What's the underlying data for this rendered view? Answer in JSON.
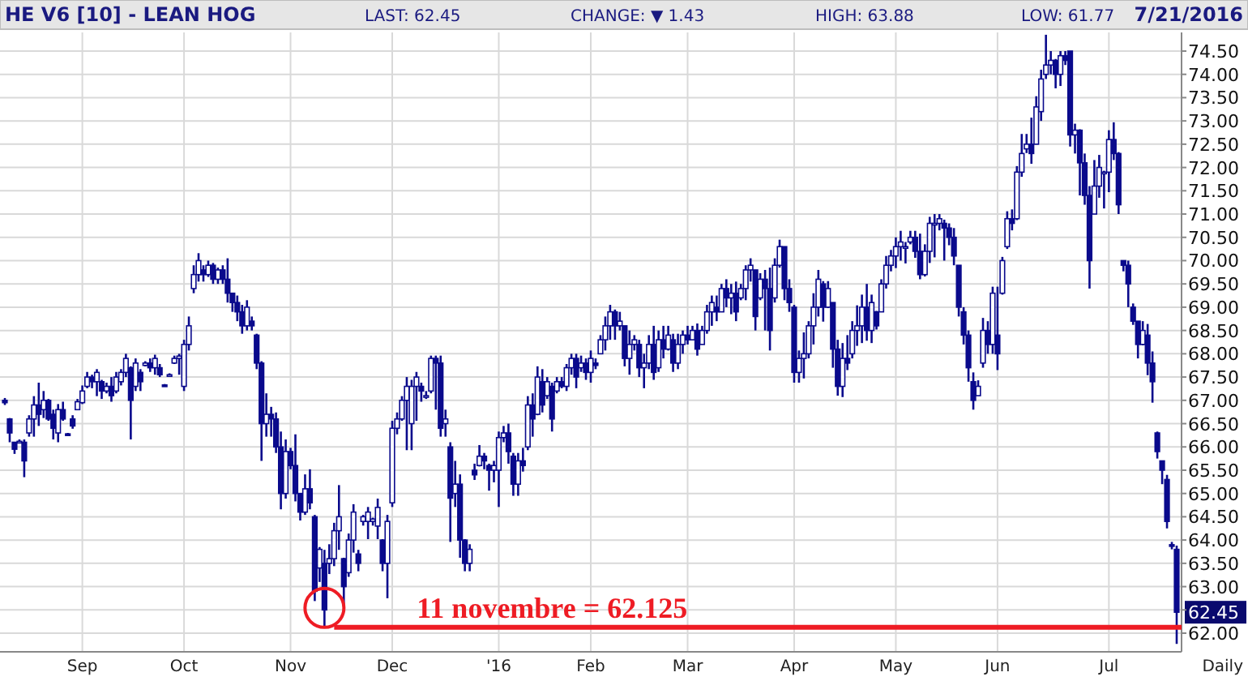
{
  "chart_data": {
    "type": "candlestick",
    "title": "HE V6 [10] - LEAN HOG",
    "annotations": [
      "LAST: 62.45",
      "CHANGE: ▼ 1.43",
      "HIGH: 63.88",
      "LOW: 61.77",
      "7/21/2016",
      "Daily",
      "62.45"
    ],
    "color": "#0a0a8c",
    "grid": true,
    "categories": [
      null,
      null,
      null,
      null,
      null,
      null,
      null,
      null,
      null,
      null,
      null,
      null,
      null,
      null,
      null,
      null,
      "Sep",
      null,
      null,
      null,
      null,
      null,
      null,
      null,
      null,
      null,
      null,
      null,
      null,
      null,
      null,
      null,
      null,
      null,
      null,
      null,
      null,
      "Oct",
      null,
      null,
      null,
      null,
      null,
      null,
      null,
      null,
      null,
      null,
      null,
      null,
      null,
      null,
      null,
      null,
      null,
      null,
      null,
      null,
      null,
      "Nov",
      null,
      null,
      null,
      null,
      null,
      null,
      null,
      null,
      null,
      null,
      null,
      null,
      null,
      null,
      null,
      null,
      null,
      null,
      null,
      null,
      "Dec",
      null,
      null,
      null,
      null,
      null,
      null,
      null,
      null,
      null,
      null,
      null,
      null,
      null,
      null,
      null,
      null,
      null,
      null,
      null,
      null,
      null,
      "'16",
      null,
      null,
      null,
      null,
      null,
      null,
      null,
      null,
      null,
      null,
      null,
      null,
      null,
      null,
      null,
      null,
      null,
      null,
      "Feb",
      null,
      null,
      null,
      null,
      null,
      null,
      null,
      null,
      null,
      null,
      null,
      null,
      null,
      null,
      null,
      null,
      null,
      null,
      null,
      "Mar",
      null,
      null,
      null,
      null,
      null,
      null,
      null,
      null,
      null,
      null,
      null,
      null,
      null,
      null,
      null,
      null,
      null,
      null,
      null,
      null,
      null,
      "Apr",
      null,
      null,
      null,
      null,
      null,
      null,
      null,
      null,
      null,
      null,
      null,
      null,
      null,
      null,
      null,
      null,
      null,
      null,
      null,
      null,
      "May",
      null,
      null,
      null,
      null,
      null,
      null,
      null,
      null,
      null,
      null,
      null,
      null,
      null,
      null,
      null,
      null,
      null,
      null,
      null,
      null,
      "Jun",
      null,
      null,
      null,
      null,
      null,
      null,
      null,
      null,
      null,
      null,
      null,
      null,
      null,
      null,
      null,
      null,
      null,
      null,
      null,
      null,
      null,
      null,
      "Jul",
      null,
      null,
      null,
      null,
      null,
      null,
      null,
      null,
      null,
      null,
      null,
      null,
      null,
      null
    ],
    "ohlc": [
      [
        67.0,
        67.05,
        66.9,
        66.95
      ],
      [
        66.6,
        66.62,
        66.1,
        66.3
      ],
      [
        66.1,
        66.1,
        65.85,
        65.95
      ],
      [
        66.1,
        66.16,
        66.1,
        66.12
      ],
      [
        66.1,
        66.16,
        65.35,
        65.7
      ],
      [
        66.3,
        66.68,
        66.22,
        66.6
      ],
      [
        66.6,
        67.09,
        66.22,
        66.9
      ],
      [
        66.9,
        67.38,
        66.45,
        66.7
      ],
      [
        66.8,
        67.2,
        66.62,
        67.0
      ],
      [
        67.0,
        67.03,
        66.56,
        66.6
      ],
      [
        66.7,
        66.8,
        66.16,
        66.4
      ],
      [
        66.3,
        66.92,
        66.1,
        66.8
      ],
      [
        66.8,
        66.97,
        66.56,
        66.6
      ],
      [
        66.28,
        66.3,
        66.25,
        66.27
      ],
      [
        66.6,
        66.68,
        66.39,
        66.45
      ],
      [
        66.8,
        67.03,
        66.8,
        66.97
      ],
      [
        66.95,
        67.32,
        66.92,
        67.2
      ],
      [
        67.3,
        67.61,
        67.26,
        67.5
      ],
      [
        67.5,
        67.55,
        67.26,
        67.4
      ],
      [
        67.4,
        67.67,
        67.09,
        67.6
      ],
      [
        67.4,
        67.44,
        67.03,
        67.2
      ],
      [
        67.2,
        67.38,
        67.15,
        67.3
      ],
      [
        67.3,
        67.5,
        66.97,
        67.1
      ],
      [
        67.2,
        67.61,
        67.15,
        67.5
      ],
      [
        67.4,
        67.67,
        67.32,
        67.6
      ],
      [
        67.6,
        68.0,
        67.5,
        67.9
      ],
      [
        67.7,
        67.73,
        66.16,
        67.0
      ],
      [
        67.3,
        67.9,
        67.2,
        67.8
      ],
      [
        67.6,
        67.67,
        67.2,
        67.4
      ],
      [
        67.75,
        67.84,
        67.73,
        67.8
      ],
      [
        67.8,
        67.9,
        67.61,
        67.7
      ],
      [
        67.7,
        67.98,
        67.55,
        67.9
      ],
      [
        67.7,
        67.78,
        67.5,
        67.55
      ],
      [
        67.33,
        67.35,
        67.3,
        67.32
      ],
      [
        67.55,
        67.58,
        67.52,
        67.55
      ],
      [
        67.8,
        67.96,
        67.78,
        67.9
      ],
      [
        67.9,
        68.0,
        67.55,
        67.95
      ],
      [
        67.3,
        68.3,
        67.2,
        68.2
      ],
      [
        68.2,
        68.8,
        68.07,
        68.6
      ],
      [
        69.4,
        69.9,
        69.3,
        69.7
      ],
      [
        69.7,
        70.16,
        69.55,
        70.0
      ],
      [
        69.8,
        69.9,
        69.55,
        69.7
      ],
      [
        69.7,
        70.0,
        69.65,
        69.9
      ],
      [
        69.9,
        69.95,
        69.5,
        69.6
      ],
      [
        69.6,
        69.85,
        69.5,
        69.8
      ],
      [
        69.8,
        69.9,
        69.5,
        69.6
      ],
      [
        69.6,
        70.05,
        69.1,
        69.3
      ],
      [
        69.3,
        69.3,
        68.9,
        69.1
      ],
      [
        69.1,
        69.25,
        68.7,
        68.9
      ],
      [
        68.9,
        69.05,
        68.43,
        68.6
      ],
      [
        68.6,
        69.15,
        68.5,
        69.0
      ],
      [
        68.7,
        68.8,
        68.5,
        68.6
      ],
      [
        68.4,
        68.43,
        67.67,
        67.8
      ],
      [
        67.8,
        67.84,
        65.7,
        66.5
      ],
      [
        66.5,
        67.15,
        66.22,
        66.7
      ],
      [
        66.7,
        66.86,
        66.22,
        66.6
      ],
      [
        66.6,
        66.74,
        65.87,
        66.0
      ],
      [
        66.0,
        66.33,
        64.66,
        65.0
      ],
      [
        65.0,
        66.16,
        64.89,
        65.9
      ],
      [
        65.9,
        65.98,
        65.52,
        65.6
      ],
      [
        65.6,
        66.27,
        64.83,
        65.0
      ],
      [
        65.0,
        65.0,
        64.42,
        64.6
      ],
      [
        64.6,
        65.41,
        64.54,
        65.1
      ],
      [
        65.1,
        65.52,
        64.66,
        64.8
      ],
      [
        64.5,
        64.54,
        62.69,
        62.9
      ],
      [
        63.4,
        63.85,
        63.1,
        63.8
      ],
      [
        63.5,
        63.79,
        62.125,
        62.5
      ],
      [
        63.5,
        63.91,
        63.27,
        63.6
      ],
      [
        63.6,
        64.37,
        63.44,
        64.2
      ],
      [
        64.2,
        65.18,
        63.79,
        64.5
      ],
      [
        63.6,
        63.62,
        62.58,
        63.0
      ],
      [
        63.3,
        64.14,
        63.21,
        64.0
      ],
      [
        64.0,
        64.77,
        63.73,
        64.6
      ],
      [
        63.7,
        63.79,
        63.33,
        63.5
      ],
      [
        64.4,
        64.54,
        64.31,
        64.5
      ],
      [
        64.4,
        64.71,
        64.02,
        64.6
      ],
      [
        64.4,
        64.48,
        64.31,
        64.45
      ],
      [
        64.3,
        64.89,
        64.02,
        64.7
      ],
      [
        64.0,
        64.02,
        63.33,
        63.5
      ],
      [
        63.5,
        64.54,
        62.75,
        64.4
      ],
      [
        64.8,
        66.56,
        64.71,
        66.4
      ],
      [
        66.4,
        66.74,
        66.27,
        66.6
      ],
      [
        66.6,
        67.09,
        66.56,
        67.0
      ],
      [
        67.0,
        67.5,
        65.93,
        67.3
      ],
      [
        66.5,
        67.44,
        65.93,
        67.3
      ],
      [
        67.3,
        67.61,
        66.56,
        67.5
      ],
      [
        67.3,
        67.38,
        66.97,
        67.2
      ],
      [
        67.1,
        67.2,
        67.03,
        67.1
      ],
      [
        67.2,
        67.96,
        67.15,
        67.9
      ],
      [
        67.9,
        67.96,
        66.8,
        67.8
      ],
      [
        67.8,
        67.96,
        66.22,
        66.4
      ],
      [
        66.5,
        66.8,
        66.22,
        66.6
      ],
      [
        66.0,
        66.1,
        63.96,
        64.9
      ],
      [
        65.0,
        65.7,
        64.71,
        65.2
      ],
      [
        65.2,
        65.41,
        63.62,
        64.0
      ],
      [
        64.0,
        64.02,
        63.33,
        63.5
      ],
      [
        63.5,
        63.91,
        63.33,
        63.8
      ],
      [
        65.5,
        65.64,
        65.29,
        65.4
      ],
      [
        65.6,
        66.04,
        65.58,
        65.8
      ],
      [
        65.8,
        65.87,
        65.52,
        65.7
      ],
      [
        65.6,
        65.64,
        65.06,
        65.5
      ],
      [
        65.5,
        65.7,
        65.24,
        65.6
      ],
      [
        65.5,
        66.33,
        64.71,
        66.2
      ],
      [
        66.2,
        66.45,
        66.1,
        66.3
      ],
      [
        66.3,
        66.5,
        65.64,
        65.9
      ],
      [
        65.8,
        65.87,
        64.95,
        65.2
      ],
      [
        65.2,
        65.87,
        64.95,
        65.7
      ],
      [
        65.7,
        65.98,
        65.47,
        65.6
      ],
      [
        66.0,
        67.09,
        65.93,
        66.9
      ],
      [
        66.9,
        67.15,
        66.22,
        66.6
      ],
      [
        66.7,
        67.73,
        66.68,
        67.5
      ],
      [
        67.4,
        67.67,
        66.74,
        66.9
      ],
      [
        67.1,
        67.5,
        67.03,
        67.4
      ],
      [
        67.3,
        67.38,
        66.33,
        66.6
      ],
      [
        67.2,
        67.5,
        67.15,
        67.4
      ],
      [
        67.4,
        67.5,
        67.26,
        67.3
      ],
      [
        67.3,
        67.78,
        67.2,
        67.7
      ],
      [
        67.7,
        68.0,
        67.55,
        67.9
      ],
      [
        67.9,
        68.0,
        67.26,
        67.5
      ],
      [
        67.7,
        67.96,
        67.61,
        67.8
      ],
      [
        67.8,
        67.9,
        67.44,
        67.6
      ],
      [
        67.6,
        68.07,
        67.38,
        67.9
      ],
      [
        67.8,
        67.9,
        67.67,
        67.75
      ],
      [
        68.0,
        68.4,
        68.0,
        68.3
      ],
      [
        68.3,
        68.8,
        68.07,
        68.6
      ],
      [
        68.6,
        69.05,
        68.3,
        68.9
      ],
      [
        68.9,
        68.95,
        68.3,
        68.6
      ],
      [
        68.6,
        68.9,
        68.5,
        68.7
      ],
      [
        68.6,
        68.6,
        67.73,
        67.9
      ],
      [
        67.9,
        68.5,
        67.55,
        68.2
      ],
      [
        68.2,
        68.4,
        68.07,
        68.3
      ],
      [
        68.2,
        68.3,
        67.5,
        67.7
      ],
      [
        67.7,
        68.0,
        67.26,
        67.8
      ],
      [
        67.8,
        68.4,
        67.67,
        68.2
      ],
      [
        68.2,
        68.6,
        67.44,
        67.6
      ],
      [
        67.7,
        68.5,
        67.61,
        68.3
      ],
      [
        68.3,
        68.6,
        67.9,
        68.1
      ],
      [
        68.1,
        68.6,
        68.07,
        68.4
      ],
      [
        68.3,
        68.43,
        67.61,
        67.8
      ],
      [
        67.8,
        68.43,
        67.67,
        68.2
      ],
      [
        68.2,
        68.5,
        68.0,
        68.4
      ],
      [
        68.4,
        68.6,
        68.2,
        68.3
      ],
      [
        68.3,
        68.6,
        68.3,
        68.5
      ],
      [
        68.5,
        68.65,
        67.96,
        68.1
      ],
      [
        68.2,
        68.6,
        68.2,
        68.5
      ],
      [
        68.5,
        69.05,
        68.43,
        68.9
      ],
      [
        68.9,
        69.25,
        68.6,
        69.1
      ],
      [
        69.0,
        69.25,
        68.7,
        68.9
      ],
      [
        68.9,
        69.5,
        68.9,
        69.4
      ],
      [
        69.4,
        69.6,
        69.0,
        69.2
      ],
      [
        69.2,
        69.5,
        68.85,
        69.3
      ],
      [
        69.3,
        69.55,
        68.7,
        68.9
      ],
      [
        69.2,
        69.5,
        69.15,
        69.4
      ],
      [
        69.4,
        69.9,
        69.15,
        69.8
      ],
      [
        69.8,
        70.05,
        69.55,
        69.9
      ],
      [
        69.8,
        69.8,
        68.5,
        68.8
      ],
      [
        69.2,
        69.73,
        69.15,
        69.6
      ],
      [
        69.6,
        69.8,
        68.5,
        69.4
      ],
      [
        69.4,
        69.85,
        68.07,
        68.5
      ],
      [
        69.2,
        70.05,
        69.1,
        69.9
      ],
      [
        69.9,
        70.45,
        69.85,
        70.3
      ],
      [
        70.3,
        70.3,
        69.15,
        69.4
      ],
      [
        69.4,
        69.6,
        68.9,
        69.1
      ],
      [
        69.0,
        69.05,
        67.38,
        67.6
      ],
      [
        67.6,
        68.07,
        67.38,
        67.9
      ],
      [
        67.9,
        68.46,
        67.47,
        68.0
      ],
      [
        68.0,
        68.7,
        67.9,
        68.6
      ],
      [
        68.6,
        69.3,
        68.2,
        69.0
      ],
      [
        69.0,
        69.8,
        68.8,
        69.6
      ],
      [
        69.5,
        69.56,
        68.69,
        69.0
      ],
      [
        69.0,
        69.56,
        68.98,
        69.4
      ],
      [
        69.1,
        69.1,
        67.7,
        68.1
      ],
      [
        68.1,
        68.3,
        67.1,
        67.3
      ],
      [
        67.3,
        68.23,
        67.07,
        67.9
      ],
      [
        67.9,
        68.4,
        67.65,
        67.8
      ],
      [
        68.0,
        68.7,
        67.9,
        68.5
      ],
      [
        68.5,
        69.04,
        68.17,
        68.6
      ],
      [
        68.6,
        69.27,
        68.23,
        69.0
      ],
      [
        69.0,
        69.5,
        68.28,
        68.5
      ],
      [
        68.5,
        69.27,
        68.23,
        69.1
      ],
      [
        68.9,
        68.92,
        68.52,
        68.6
      ],
      [
        68.9,
        69.6,
        68.9,
        69.5
      ],
      [
        69.5,
        70.1,
        69.4,
        69.9
      ],
      [
        69.9,
        70.23,
        69.77,
        70.1
      ],
      [
        70.1,
        70.5,
        69.84,
        70.3
      ],
      [
        70.3,
        70.64,
        70.0,
        70.4
      ],
      [
        70.3,
        70.4,
        69.94,
        70.3
      ],
      [
        70.4,
        70.64,
        70.35,
        70.5
      ],
      [
        70.5,
        70.64,
        70.06,
        70.2
      ],
      [
        70.2,
        70.58,
        69.6,
        69.7
      ],
      [
        69.7,
        70.35,
        69.66,
        70.2
      ],
      [
        70.2,
        70.94,
        69.95,
        70.8
      ],
      [
        70.8,
        71.0,
        70.07,
        70.8
      ],
      [
        70.8,
        71.0,
        70.65,
        70.9
      ],
      [
        70.8,
        70.88,
        70.0,
        70.7
      ],
      [
        70.7,
        70.8,
        70.33,
        70.5
      ],
      [
        70.5,
        70.7,
        69.9,
        70.1
      ],
      [
        69.9,
        69.9,
        68.8,
        69.0
      ],
      [
        68.9,
        69.0,
        68.2,
        68.4
      ],
      [
        68.4,
        68.5,
        67.4,
        67.7
      ],
      [
        67.4,
        67.6,
        66.8,
        67.0
      ],
      [
        67.1,
        67.43,
        67.1,
        67.3
      ],
      [
        67.8,
        68.77,
        67.7,
        68.5
      ],
      [
        68.5,
        68.7,
        68.0,
        68.2
      ],
      [
        68.2,
        69.44,
        68.0,
        69.3
      ],
      [
        68.4,
        69.44,
        67.65,
        68.0
      ],
      [
        69.3,
        70.08,
        69.27,
        70.0
      ],
      [
        70.3,
        71.06,
        70.25,
        70.9
      ],
      [
        70.9,
        71.1,
        70.65,
        70.8
      ],
      [
        70.9,
        72.03,
        70.87,
        71.9
      ],
      [
        71.9,
        72.72,
        71.8,
        72.3
      ],
      [
        72.4,
        72.72,
        72.31,
        72.5
      ],
      [
        72.5,
        73.07,
        72.08,
        72.3
      ],
      [
        72.5,
        73.53,
        72.5,
        73.3
      ],
      [
        73.2,
        74.1,
        73.0,
        73.9
      ],
      [
        74.0,
        74.85,
        73.9,
        74.2
      ],
      [
        74.2,
        74.5,
        74.0,
        74.3
      ],
      [
        74.3,
        74.33,
        73.7,
        74.0
      ],
      [
        74.0,
        74.5,
        73.75,
        74.4
      ],
      [
        74.4,
        74.5,
        74.2,
        74.3
      ],
      [
        74.5,
        74.5,
        72.45,
        72.7
      ],
      [
        72.7,
        72.94,
        72.3,
        72.8
      ],
      [
        72.8,
        72.82,
        71.4,
        72.1
      ],
      [
        72.1,
        72.3,
        71.2,
        71.4
      ],
      [
        71.4,
        71.6,
        69.4,
        70.0
      ],
      [
        71.0,
        72.16,
        71.0,
        71.6
      ],
      [
        71.6,
        72.27,
        71.35,
        72.0
      ],
      [
        71.9,
        71.93,
        71.12,
        71.9
      ],
      [
        71.9,
        72.8,
        71.47,
        72.6
      ],
      [
        72.6,
        72.97,
        72.16,
        72.3
      ],
      [
        72.3,
        72.33,
        71.0,
        71.2
      ],
      [
        70.0,
        70.0,
        69.77,
        69.9
      ],
      [
        69.9,
        70.0,
        69.0,
        69.5
      ],
      [
        69.0,
        69.08,
        68.62,
        68.7
      ],
      [
        68.7,
        68.7,
        67.9,
        68.2
      ],
      [
        68.2,
        68.7,
        68.18,
        68.5
      ],
      [
        68.4,
        68.64,
        67.54,
        67.8
      ],
      [
        67.8,
        68.05,
        66.95,
        67.4
      ],
      [
        66.3,
        66.33,
        65.75,
        65.9
      ],
      [
        65.7,
        65.7,
        65.2,
        65.5
      ],
      [
        65.3,
        65.4,
        64.25,
        64.4
      ],
      [
        63.9,
        63.96,
        63.8,
        63.88
      ],
      [
        63.8,
        63.88,
        61.77,
        62.45
      ]
    ],
    "ylim": [
      61.6,
      74.9
    ],
    "yticks": [
      {
        "value": 62,
        "label": "62.00"
      },
      {
        "value": 62.5,
        "label": null
      },
      {
        "value": 63,
        "label": "63.00"
      },
      {
        "value": 63.5,
        "label": "63.50"
      },
      {
        "value": 64,
        "label": "64.00"
      },
      {
        "value": 64.5,
        "label": "64.50"
      },
      {
        "value": 65,
        "label": "65.00"
      },
      {
        "value": 65.5,
        "label": "65.50"
      },
      {
        "value": 66,
        "label": "66.00"
      },
      {
        "value": 66.5,
        "label": "66.50"
      },
      {
        "value": 67,
        "label": "67.00"
      },
      {
        "value": 67.5,
        "label": "67.50"
      },
      {
        "value": 68,
        "label": "68.00"
      },
      {
        "value": 68.5,
        "label": "68.50"
      },
      {
        "value": 69,
        "label": "69.00"
      },
      {
        "value": 69.5,
        "label": "69.50"
      },
      {
        "value": 70,
        "label": "70.00"
      },
      {
        "value": 70.5,
        "label": "70.50"
      },
      {
        "value": 71,
        "label": "71.00"
      },
      {
        "value": 71.5,
        "label": "71.50"
      },
      {
        "value": 72,
        "label": "72.00"
      },
      {
        "value": 72.5,
        "label": "72.50"
      },
      {
        "value": 73,
        "label": "73.00"
      },
      {
        "value": 73.5,
        "label": "73.50"
      },
      {
        "value": 74,
        "label": "74.00"
      },
      {
        "value": 74.5,
        "label": "74.50"
      }
    ],
    "ref_lines": [
      {
        "axis": "y",
        "value": 62.125,
        "label": "11 novembre = 62.125",
        "color": "#ee1c24"
      }
    ]
  }
}
